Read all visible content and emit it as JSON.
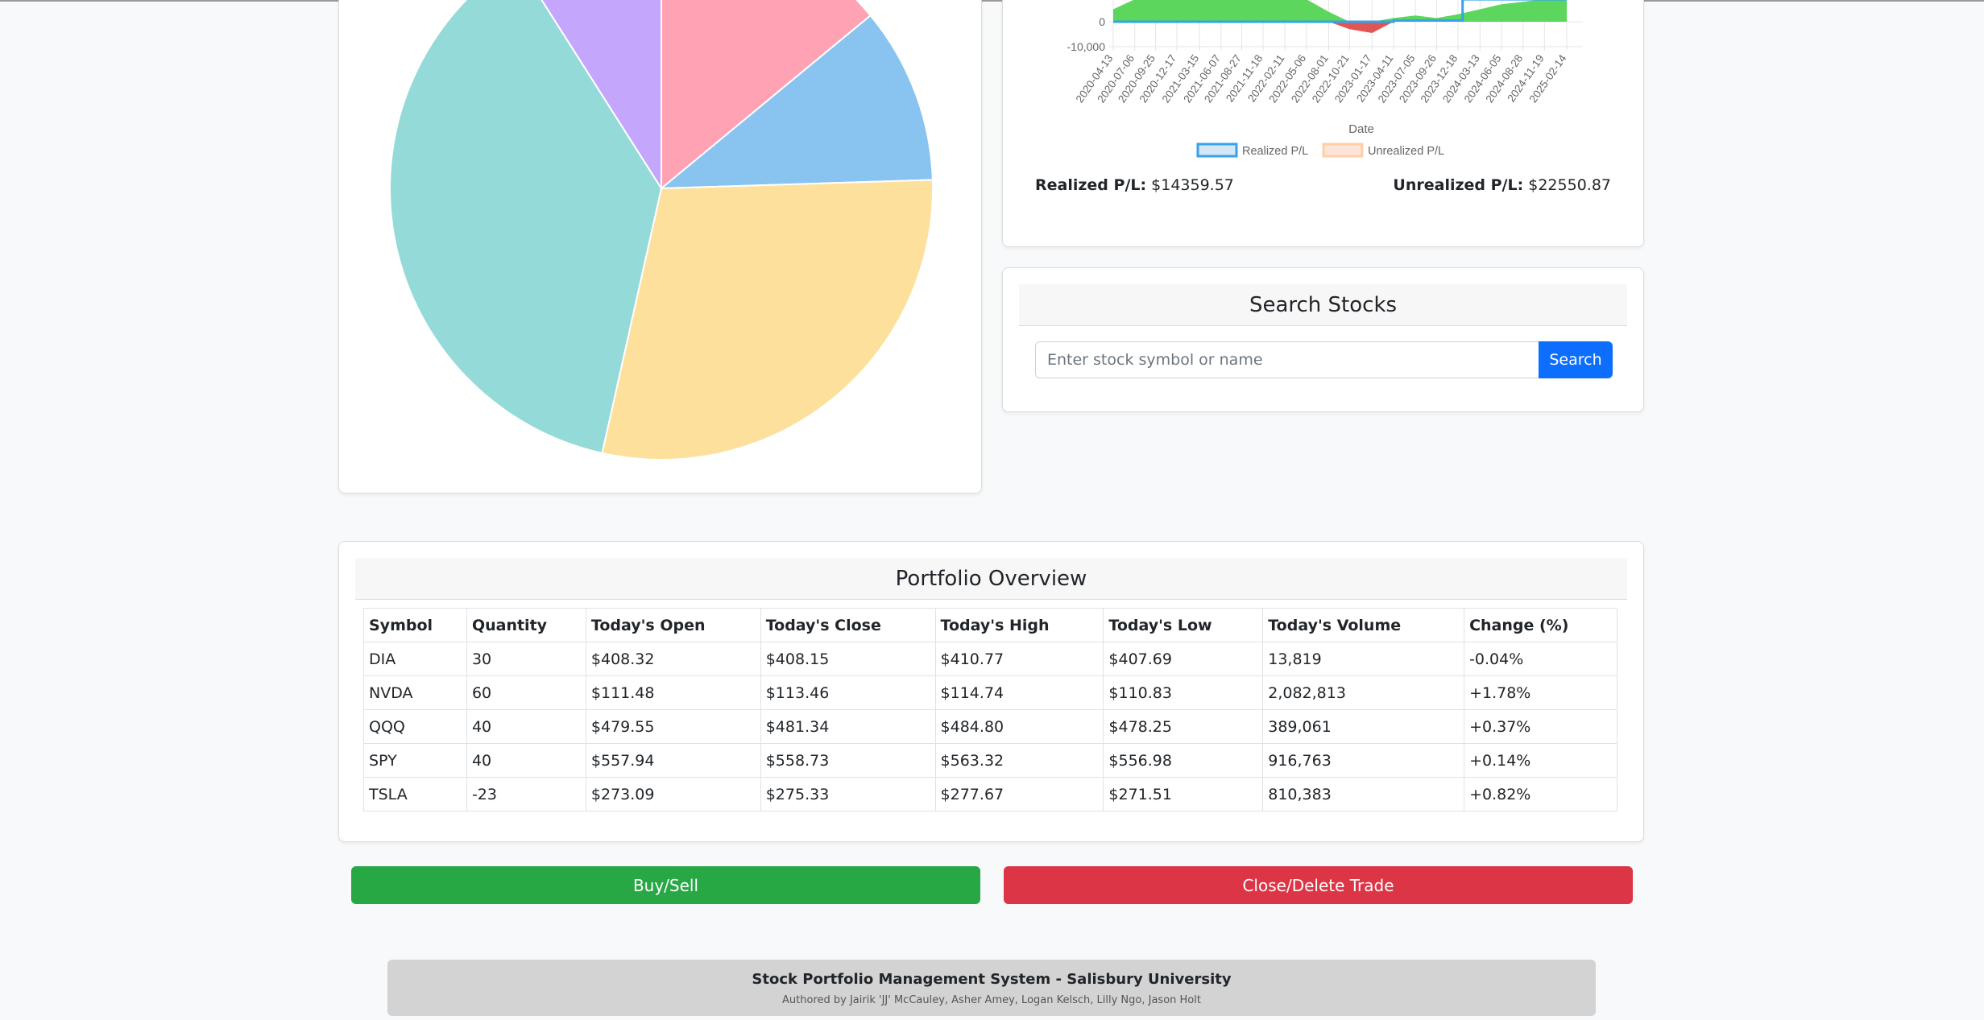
{
  "pie_chart": {
    "chart_data": {
      "type": "pie",
      "slices": [
        {
          "label": "",
          "value": 14.0,
          "color": "#ffa2b4"
        },
        {
          "label": "",
          "value": 10.5,
          "color": "#89c4f1"
        },
        {
          "label": "",
          "value": 29.0,
          "color": "#fde09b"
        },
        {
          "label": "",
          "value": 37.5,
          "color": "#94dad8"
        },
        {
          "label": "",
          "value": 9.0,
          "color": "#c4a6fc"
        }
      ]
    }
  },
  "pl_chart": {
    "chart_data": {
      "type": "area",
      "title": "",
      "xlabel": "Date",
      "y_ticks": [
        "0",
        "-10,000"
      ],
      "x_ticks": [
        "2020-04-13",
        "2020-07-06",
        "2020-09-25",
        "2020-12-17",
        "2021-03-15",
        "2021-06-07",
        "2021-08-27",
        "2021-11-18",
        "2022-02-11",
        "2022-05-06",
        "2022-08-01",
        "2022-10-21",
        "2023-01-17",
        "2023-04-11",
        "2023-07-05",
        "2023-09-26",
        "2023-12-18",
        "2024-03-13",
        "2024-06-05",
        "2024-08-28",
        "2024-11-19",
        "2025-02-14"
      ],
      "series": [
        {
          "name": "Realized P/L",
          "color": "#36a2eb",
          "fill": "#d6e6f5",
          "points": [
            [
              "2020-04-13",
              0
            ],
            [
              "2022-08-01",
              0
            ],
            [
              "2022-10-21",
              0
            ],
            [
              "2023-01-17",
              0
            ],
            [
              "2023-04-11",
              500
            ],
            [
              "2023-07-05",
              500
            ],
            [
              "2023-09-26",
              500
            ],
            [
              "2023-12-18",
              500
            ],
            [
              "2024-01-05",
              9000
            ],
            [
              "2024-03-13",
              9000
            ],
            [
              "2024-06-05",
              9000
            ],
            [
              "2024-08-28",
              9000
            ],
            [
              "2024-11-19",
              9000
            ],
            [
              "2025-02-14",
              9000
            ]
          ]
        },
        {
          "name": "Unrealized P/L",
          "color": "#ffcfa8",
          "fill": "#fde4d8",
          "points": [
            [
              "2020-04-13",
              5000
            ],
            [
              "2020-07-06",
              9000
            ],
            [
              "2020-09-25",
              10000
            ],
            [
              "2020-12-17",
              11000
            ],
            [
              "2021-03-15",
              13000
            ],
            [
              "2021-06-07",
              12000
            ],
            [
              "2021-08-27",
              14000
            ],
            [
              "2021-11-18",
              13000
            ],
            [
              "2022-02-11",
              11000
            ],
            [
              "2022-05-06",
              9000
            ],
            [
              "2022-08-01",
              4000
            ],
            [
              "2022-10-21",
              -3000
            ],
            [
              "2023-01-17",
              -4500
            ],
            [
              "2023-04-11",
              1500
            ],
            [
              "2023-07-05",
              2500
            ],
            [
              "2023-09-26",
              1500
            ],
            [
              "2023-12-18",
              3000
            ],
            [
              "2024-03-13",
              5000
            ],
            [
              "2024-06-05",
              7000
            ],
            [
              "2024-08-28",
              8000
            ],
            [
              "2024-11-19",
              9000
            ],
            [
              "2025-02-14",
              10000
            ]
          ]
        }
      ],
      "legend": "bottom"
    },
    "realized_label": "Realized P/L:",
    "realized_value": "$14359.57",
    "unrealized_label": "Unrealized P/L:",
    "unrealized_value": "$22550.87"
  },
  "search": {
    "title": "Search Stocks",
    "placeholder": "Enter stock symbol or name",
    "button": "Search"
  },
  "portfolio": {
    "title": "Portfolio Overview",
    "columns": [
      "Symbol",
      "Quantity",
      "Today's Open",
      "Today's Close",
      "Today's High",
      "Today's Low",
      "Today's Volume",
      "Change (%)"
    ],
    "rows": [
      [
        "DIA",
        "30",
        "$408.32",
        "$408.15",
        "$410.77",
        "$407.69",
        "13,819",
        "-0.04%"
      ],
      [
        "NVDA",
        "60",
        "$111.48",
        "$113.46",
        "$114.74",
        "$110.83",
        "2,082,813",
        "+1.78%"
      ],
      [
        "QQQ",
        "40",
        "$479.55",
        "$481.34",
        "$484.80",
        "$478.25",
        "389,061",
        "+0.37%"
      ],
      [
        "SPY",
        "40",
        "$557.94",
        "$558.73",
        "$563.32",
        "$556.98",
        "916,763",
        "+0.14%"
      ],
      [
        "TSLA",
        "-23",
        "$273.09",
        "$275.33",
        "$277.67",
        "$271.51",
        "810,383",
        "+0.82%"
      ]
    ]
  },
  "actions": {
    "buy_sell": "Buy/Sell",
    "close_delete": "Close/Delete Trade"
  },
  "footer": {
    "title": "Stock Portfolio Management System - Salisbury University",
    "authors": "Authored by Jairik 'JJ' McCauley, Asher Amey, Logan Kelsch, Lilly Ngo, Jason Holt"
  }
}
